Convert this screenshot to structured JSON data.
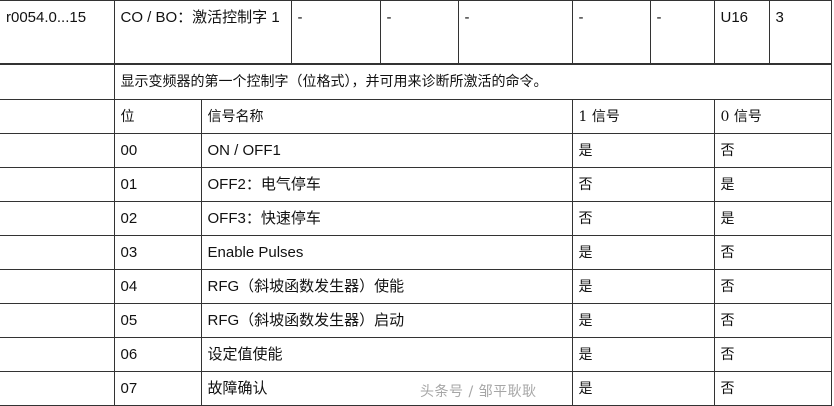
{
  "parameter": {
    "number": "r0054.0...15",
    "name": "CO / BO：激活控制字 1",
    "cols": [
      "-",
      "-",
      "-",
      "-",
      "-"
    ],
    "unit": "U16",
    "level": "3"
  },
  "description": "显示变频器的第一个控制字（位格式），并可用来诊断所激活的命令。",
  "bit_table": {
    "headers": [
      "位",
      "信号名称",
      "1 信号",
      "0 信号"
    ],
    "rows": [
      {
        "bit": "00",
        "name": "ON / OFF1",
        "one": "是",
        "zero": "否"
      },
      {
        "bit": "01",
        "name": "OFF2：电气停车",
        "one": "否",
        "zero": "是"
      },
      {
        "bit": "02",
        "name": "OFF3：快速停车",
        "one": "否",
        "zero": "是"
      },
      {
        "bit": "03",
        "name": "Enable Pulses",
        "one": "是",
        "zero": "否"
      },
      {
        "bit": "04",
        "name": "RFG（斜坡函数发生器）使能",
        "one": "是",
        "zero": "否"
      },
      {
        "bit": "05",
        "name": "RFG（斜坡函数发生器）启动",
        "one": "是",
        "zero": "否"
      },
      {
        "bit": "06",
        "name": "设定值使能",
        "one": "是",
        "zero": "否"
      },
      {
        "bit": "07",
        "name": "故障确认",
        "one": "是",
        "zero": "否"
      }
    ]
  },
  "watermark": "头条号 / 邹平耿耿"
}
